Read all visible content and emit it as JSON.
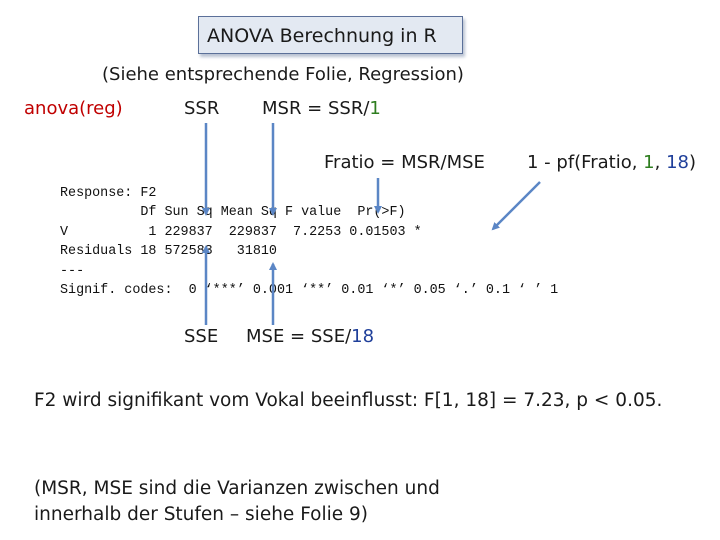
{
  "title": "ANOVA Berechnung in R",
  "subtitle": "(Siehe entsprechende Folie, Regression)",
  "labels": {
    "anova": "anova(reg)",
    "ssr": "SSR",
    "msr_prefix": "MSR = SSR/",
    "msr_df": "1",
    "fratio": "Fratio = MSR/MSE",
    "pf_prefix": "1 - pf(Fratio, ",
    "pf_df1": "1",
    "pf_sep": ", ",
    "pf_df2": "18",
    "pf_suffix": ")",
    "sse": "SSE",
    "mse_prefix": "MSE = SSE/",
    "mse_df": "18"
  },
  "r_output": [
    "Response: F2",
    "          Df Sun Sq Mean Sq F value  Pr(>F)",
    "V          1 229837  229837  7.2253 0.01503 *",
    "Residuals 18 572583   31810",
    "---",
    "Signif. codes:  0 ‘***’ 0.001 ‘**’ 0.01 ‘*’ 0.05 ‘.’ 0.1 ‘ ’ 1"
  ],
  "conclusion": "F2 wird signifikant vom Vokal beeinflusst: F[1, 18] = 7.23, p < 0.05.",
  "note_lines": [
    "(MSR, MSE sind die Varianzen zwischen und",
    "innerhalb der Stufen – siehe Folie 9)"
  ],
  "colors": {
    "df1": "#2e7d1f",
    "df2": "#1f3f9a",
    "arrow": "#5b86c5",
    "text": "#1a1a1a"
  }
}
